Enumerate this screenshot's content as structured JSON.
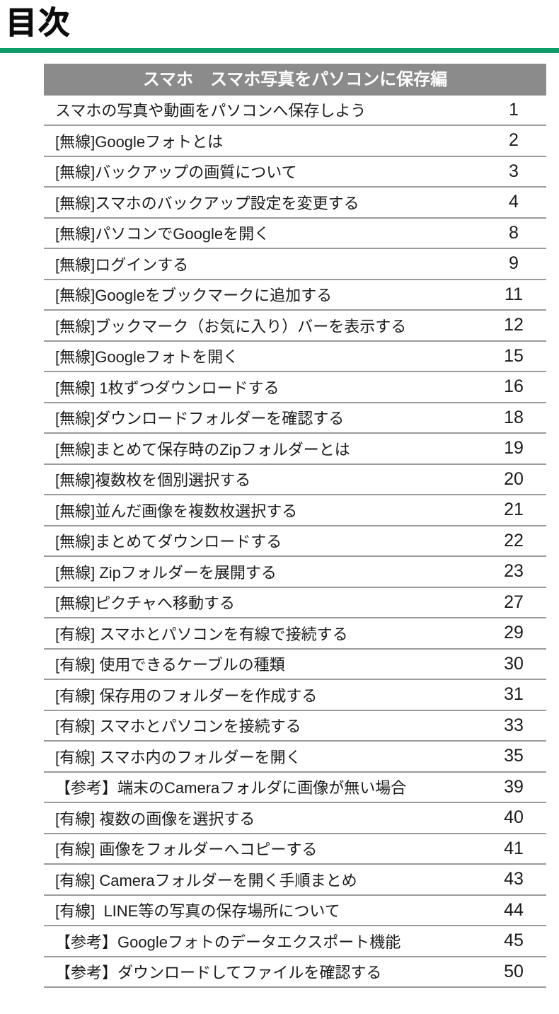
{
  "page": {
    "title": "目次"
  },
  "colors": {
    "accent": "#0e9c68",
    "header-bg": "#8b8b8b",
    "separator": "#9b9b9b",
    "text": "#1b1b1b"
  },
  "toc": {
    "header": "スマホ　スマホ写真をパソコンに保存編",
    "entries": [
      {
        "label": "スマホの写真や動画をパソコンへ保存しよう",
        "page": "1"
      },
      {
        "label": "[無線]Googleフォトとは",
        "page": "2"
      },
      {
        "label": "[無線]バックアップの画質について",
        "page": "3"
      },
      {
        "label": "[無線]スマホのバックアップ設定を変更する",
        "page": "4"
      },
      {
        "label": "[無線]パソコンでGoogleを開く",
        "page": "8"
      },
      {
        "label": "[無線]ログインする",
        "page": "9"
      },
      {
        "label": "[無線]Googleをブックマークに追加する",
        "page": "11"
      },
      {
        "label": "[無線]ブックマーク（お気に入り）バーを表示する",
        "page": "12"
      },
      {
        "label": "[無線]Googleフォトを開く",
        "page": "15"
      },
      {
        "label": "[無線] 1枚ずつダウンロードする",
        "page": "16"
      },
      {
        "label": "[無線]ダウンロードフォルダーを確認する",
        "page": "18"
      },
      {
        "label": "[無線]まとめて保存時のZipフォルダーとは",
        "page": "19"
      },
      {
        "label": "[無線]複数枚を個別選択する",
        "page": "20"
      },
      {
        "label": "[無線]並んだ画像を複数枚選択する",
        "page": "21"
      },
      {
        "label": "[無線]まとめてダウンロードする",
        "page": "22"
      },
      {
        "label": "[無線] Zipフォルダーを展開する",
        "page": "23"
      },
      {
        "label": "[無線]ピクチャへ移動する",
        "page": "27"
      },
      {
        "label": "[有線] スマホとパソコンを有線で接続する",
        "page": "29"
      },
      {
        "label": "[有線] 使用できるケーブルの種類",
        "page": "30"
      },
      {
        "label": "[有線] 保存用のフォルダーを作成する",
        "page": "31"
      },
      {
        "label": "[有線] スマホとパソコンを接続する",
        "page": "33"
      },
      {
        "label": "[有線] スマホ内のフォルダーを開く",
        "page": "35"
      },
      {
        "label": "【参考】端末のCameraフォルダに画像が無い場合",
        "page": "39"
      },
      {
        "label": "[有線] 複数の画像を選択する",
        "page": "40"
      },
      {
        "label": "[有線] 画像をフォルダーへコピーする",
        "page": "41"
      },
      {
        "label": "[有線] Cameraフォルダーを開く手順まとめ",
        "page": "43"
      },
      {
        "label": "[有線]  LINE等の写真の保存場所について",
        "page": "44"
      },
      {
        "label": "【参考】Googleフォトのデータエクスポート機能",
        "page": "45"
      },
      {
        "label": "【参考】ダウンロードしてファイルを確認する",
        "page": "50"
      }
    ]
  }
}
